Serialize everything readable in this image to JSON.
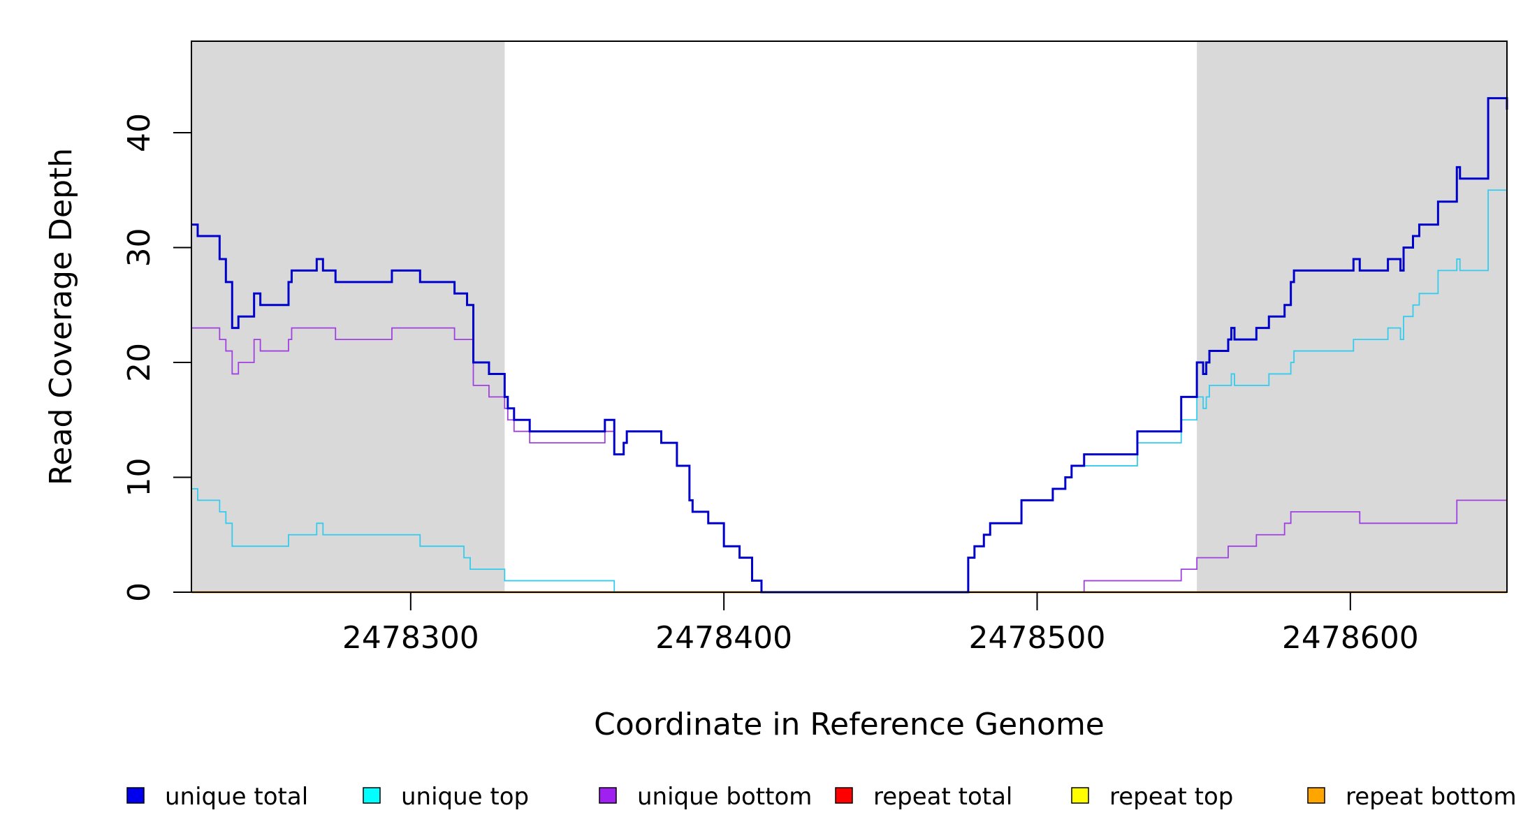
{
  "chart_data": {
    "type": "line",
    "step": true,
    "title": "",
    "xlabel": "Coordinate in Reference Genome",
    "ylabel": "Read Coverage Depth",
    "xlim": [
      2478230,
      2478650
    ],
    "ylim": [
      0,
      48
    ],
    "x_ticks": [
      2478300,
      2478400,
      2478500,
      2478600
    ],
    "x_tick_labels": [
      "2478300",
      "2478400",
      "2478500",
      "2478600"
    ],
    "y_ticks": [
      0,
      10,
      20,
      30,
      40
    ],
    "y_tick_labels": [
      "0",
      "10",
      "20",
      "30",
      "40"
    ],
    "grid": false,
    "shaded_regions": [
      {
        "x0": 2478230,
        "x1": 2478330,
        "color": "#d9d9d9"
      },
      {
        "x0": 2478551,
        "x1": 2478650,
        "color": "#d9d9d9"
      }
    ],
    "legend_position": "bottom",
    "series": [
      {
        "name": "unique total",
        "color": "#0000ee",
        "line_color": "#0000cc",
        "line_width": 3,
        "points": [
          [
            2478230,
            32
          ],
          [
            2478232,
            31
          ],
          [
            2478239,
            29
          ],
          [
            2478241,
            27
          ],
          [
            2478243,
            23
          ],
          [
            2478245,
            24
          ],
          [
            2478250,
            26
          ],
          [
            2478252,
            25
          ],
          [
            2478261,
            27
          ],
          [
            2478262,
            28
          ],
          [
            2478270,
            29
          ],
          [
            2478272,
            28
          ],
          [
            2478276,
            27
          ],
          [
            2478294,
            28
          ],
          [
            2478303,
            27
          ],
          [
            2478314,
            26
          ],
          [
            2478318,
            25
          ],
          [
            2478320,
            20
          ],
          [
            2478325,
            19
          ],
          [
            2478330,
            17
          ],
          [
            2478331,
            16
          ],
          [
            2478333,
            15
          ],
          [
            2478338,
            14
          ],
          [
            2478362,
            15
          ],
          [
            2478365,
            12
          ],
          [
            2478368,
            13
          ],
          [
            2478369,
            14
          ],
          [
            2478380,
            13
          ],
          [
            2478385,
            11
          ],
          [
            2478389,
            8
          ],
          [
            2478390,
            7
          ],
          [
            2478395,
            6
          ],
          [
            2478400,
            4
          ],
          [
            2478405,
            3
          ],
          [
            2478409,
            1
          ],
          [
            2478412,
            0
          ],
          [
            2478478,
            3
          ],
          [
            2478480,
            4
          ],
          [
            2478483,
            5
          ],
          [
            2478485,
            6
          ],
          [
            2478495,
            8
          ],
          [
            2478505,
            9
          ],
          [
            2478509,
            10
          ],
          [
            2478511,
            11
          ],
          [
            2478515,
            12
          ],
          [
            2478532,
            14
          ],
          [
            2478546,
            17
          ],
          [
            2478551,
            20
          ],
          [
            2478553,
            19
          ],
          [
            2478554,
            20
          ],
          [
            2478555,
            21
          ],
          [
            2478561,
            22
          ],
          [
            2478562,
            23
          ],
          [
            2478563,
            22
          ],
          [
            2478570,
            23
          ],
          [
            2478574,
            24
          ],
          [
            2478579,
            25
          ],
          [
            2478581,
            27
          ],
          [
            2478582,
            28
          ],
          [
            2478601,
            29
          ],
          [
            2478603,
            28
          ],
          [
            2478612,
            29
          ],
          [
            2478616,
            28
          ],
          [
            2478617,
            30
          ],
          [
            2478620,
            31
          ],
          [
            2478622,
            32
          ],
          [
            2478628,
            34
          ],
          [
            2478634,
            37
          ],
          [
            2478635,
            36
          ],
          [
            2478644,
            43
          ],
          [
            2478650,
            42
          ]
        ]
      },
      {
        "name": "unique top",
        "color": "#00ffff",
        "line_color": "#33ccee",
        "line_width": 1.8,
        "points": [
          [
            2478230,
            9
          ],
          [
            2478232,
            8
          ],
          [
            2478239,
            7
          ],
          [
            2478241,
            6
          ],
          [
            2478243,
            4
          ],
          [
            2478261,
            5
          ],
          [
            2478270,
            6
          ],
          [
            2478272,
            5
          ],
          [
            2478303,
            4
          ],
          [
            2478317,
            3
          ],
          [
            2478319,
            2
          ],
          [
            2478330,
            1
          ],
          [
            2478365,
            0
          ],
          [
            2478478,
            3
          ],
          [
            2478480,
            4
          ],
          [
            2478483,
            5
          ],
          [
            2478485,
            6
          ],
          [
            2478495,
            8
          ],
          [
            2478505,
            9
          ],
          [
            2478509,
            10
          ],
          [
            2478511,
            11
          ],
          [
            2478532,
            13
          ],
          [
            2478546,
            15
          ],
          [
            2478551,
            17
          ],
          [
            2478553,
            16
          ],
          [
            2478554,
            17
          ],
          [
            2478555,
            18
          ],
          [
            2478562,
            19
          ],
          [
            2478563,
            18
          ],
          [
            2478574,
            19
          ],
          [
            2478581,
            20
          ],
          [
            2478582,
            21
          ],
          [
            2478601,
            22
          ],
          [
            2478612,
            23
          ],
          [
            2478616,
            22
          ],
          [
            2478617,
            24
          ],
          [
            2478620,
            25
          ],
          [
            2478622,
            26
          ],
          [
            2478628,
            28
          ],
          [
            2478634,
            29
          ],
          [
            2478635,
            28
          ],
          [
            2478644,
            35
          ],
          [
            2478650,
            34
          ]
        ]
      },
      {
        "name": "unique bottom",
        "color": "#a020f0",
        "line_color": "#a040e0",
        "line_width": 1.8,
        "points": [
          [
            2478230,
            23
          ],
          [
            2478239,
            22
          ],
          [
            2478241,
            21
          ],
          [
            2478243,
            19
          ],
          [
            2478245,
            20
          ],
          [
            2478250,
            22
          ],
          [
            2478252,
            21
          ],
          [
            2478261,
            22
          ],
          [
            2478262,
            23
          ],
          [
            2478276,
            22
          ],
          [
            2478294,
            23
          ],
          [
            2478314,
            22
          ],
          [
            2478320,
            18
          ],
          [
            2478325,
            17
          ],
          [
            2478330,
            16
          ],
          [
            2478331,
            15
          ],
          [
            2478333,
            14
          ],
          [
            2478338,
            13
          ],
          [
            2478362,
            14
          ],
          [
            2478365,
            12
          ],
          [
            2478368,
            13
          ],
          [
            2478369,
            14
          ],
          [
            2478380,
            13
          ],
          [
            2478385,
            11
          ],
          [
            2478389,
            8
          ],
          [
            2478390,
            7
          ],
          [
            2478395,
            6
          ],
          [
            2478400,
            4
          ],
          [
            2478405,
            3
          ],
          [
            2478409,
            1
          ],
          [
            2478412,
            0
          ],
          [
            2478515,
            1
          ],
          [
            2478546,
            2
          ],
          [
            2478551,
            3
          ],
          [
            2478561,
            4
          ],
          [
            2478570,
            5
          ],
          [
            2478579,
            6
          ],
          [
            2478581,
            7
          ],
          [
            2478603,
            6
          ],
          [
            2478634,
            8
          ],
          [
            2478650,
            8
          ]
        ]
      },
      {
        "name": "repeat total",
        "color": "#ff0000",
        "line_color": "#ff0000",
        "line_width": 2,
        "points": [
          [
            2478230,
            0
          ],
          [
            2478650,
            0
          ]
        ]
      },
      {
        "name": "repeat top",
        "color": "#ffff00",
        "line_color": "#ffff00",
        "line_width": 2,
        "points": [
          [
            2478230,
            0
          ],
          [
            2478650,
            0
          ]
        ]
      },
      {
        "name": "repeat bottom",
        "color": "#ffa500",
        "line_color": "#ffa500",
        "line_width": 3,
        "points": [
          [
            2478230,
            0
          ],
          [
            2478650,
            0
          ]
        ]
      }
    ]
  }
}
